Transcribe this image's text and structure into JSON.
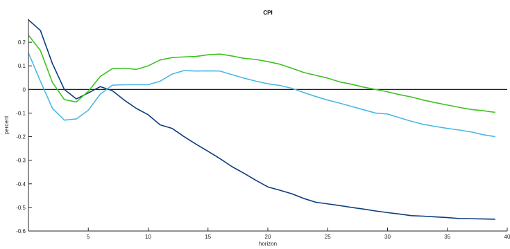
{
  "chart_data": {
    "type": "line",
    "title": "CPI",
    "xlabel": "horizon",
    "ylabel": "percent",
    "xlim": [
      0,
      40
    ],
    "ylim": [
      -0.6,
      0.3
    ],
    "xticks": [
      5,
      10,
      15,
      20,
      25,
      30,
      35,
      40
    ],
    "yticks": [
      -0.6,
      -0.5,
      -0.4,
      -0.3,
      -0.2,
      -0.1,
      0,
      0.1,
      0.2
    ],
    "ytick_labels": [
      "-0.6",
      "-0.5",
      "-0.4",
      "-0.3",
      "-0.2",
      "-0.1",
      "0",
      "0.1",
      "0.2"
    ],
    "grid": false,
    "zero_line": true,
    "x": [
      0,
      1,
      2,
      3,
      4,
      5,
      6,
      7,
      8,
      9,
      10,
      11,
      12,
      13,
      14,
      15,
      16,
      17,
      18,
      19,
      20,
      21,
      22,
      23,
      24,
      25,
      26,
      27,
      28,
      29,
      30,
      31,
      32,
      33,
      34,
      35,
      36,
      37,
      38,
      39
    ],
    "series": [
      {
        "color": "#0b3c7d",
        "values": [
          0.295,
          0.25,
          0.11,
          0.0,
          -0.04,
          -0.015,
          0.012,
          -0.005,
          -0.045,
          -0.08,
          -0.107,
          -0.15,
          -0.165,
          -0.2,
          -0.232,
          -0.262,
          -0.293,
          -0.327,
          -0.355,
          -0.385,
          -0.413,
          -0.427,
          -0.442,
          -0.462,
          -0.478,
          -0.485,
          -0.492,
          -0.5,
          -0.507,
          -0.515,
          -0.522,
          -0.528,
          -0.535,
          -0.537,
          -0.54,
          -0.543,
          -0.547,
          -0.548,
          -0.549,
          -0.55
        ]
      },
      {
        "color": "#3ec21f",
        "values": [
          0.23,
          0.165,
          0.03,
          -0.043,
          -0.053,
          -0.008,
          0.055,
          0.088,
          0.09,
          0.085,
          0.1,
          0.125,
          0.135,
          0.138,
          0.14,
          0.147,
          0.15,
          0.142,
          0.132,
          0.127,
          0.118,
          0.107,
          0.09,
          0.072,
          0.06,
          0.048,
          0.032,
          0.022,
          0.01,
          0.0,
          -0.01,
          -0.022,
          -0.032,
          -0.045,
          -0.056,
          -0.066,
          -0.076,
          -0.085,
          -0.09,
          -0.097
        ]
      },
      {
        "color": "#4bb8e6",
        "values": [
          0.155,
          0.035,
          -0.08,
          -0.13,
          -0.125,
          -0.088,
          -0.02,
          0.018,
          0.02,
          0.02,
          0.02,
          0.035,
          0.065,
          0.08,
          0.078,
          0.079,
          0.078,
          0.063,
          0.048,
          0.035,
          0.024,
          0.017,
          0.005,
          -0.013,
          -0.03,
          -0.045,
          -0.058,
          -0.072,
          -0.086,
          -0.1,
          -0.104,
          -0.12,
          -0.135,
          -0.148,
          -0.157,
          -0.165,
          -0.172,
          -0.18,
          -0.192,
          -0.2
        ]
      }
    ]
  }
}
